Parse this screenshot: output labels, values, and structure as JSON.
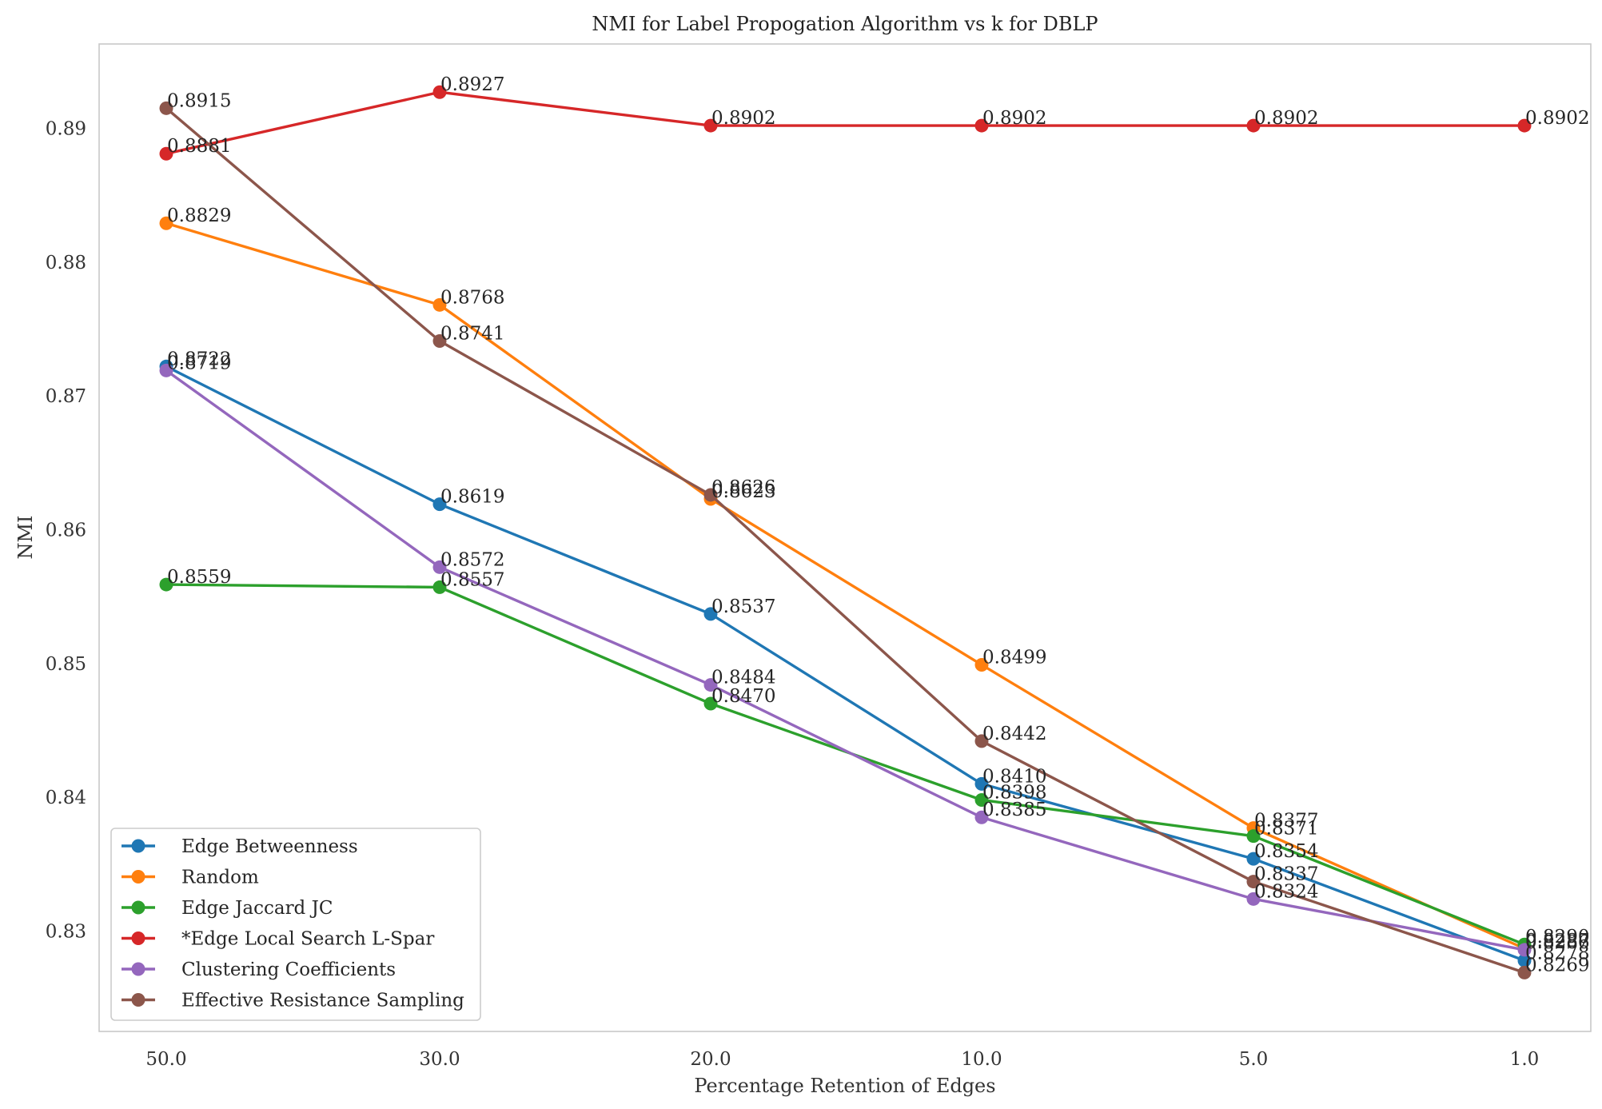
{
  "chart_data": {
    "type": "line",
    "title": "NMI for Label Propogation Algorithm vs k for DBLP",
    "xlabel": "Percentage Retention of Edges",
    "ylabel": "NMI",
    "categories": [
      "50.0",
      "30.0",
      "20.0",
      "10.0",
      "5.0",
      "1.0"
    ],
    "ylim": [
      0.8225,
      0.8963
    ],
    "yticks": [
      "0.83",
      "0.84",
      "0.85",
      "0.86",
      "0.87",
      "0.88",
      "0.89"
    ],
    "ytick_values": [
      0.83,
      0.84,
      0.85,
      0.86,
      0.87,
      0.88,
      0.89
    ],
    "grid": false,
    "legend_position": "lower-left",
    "series": [
      {
        "name": "Edge Betweenness",
        "color": "#1f77b4",
        "values": [
          0.8722,
          0.8619,
          0.8537,
          0.841,
          0.8354,
          0.8278
        ],
        "labels": [
          "0.8722",
          "0.8619",
          "0.8537",
          "0.8410",
          "0.8354",
          "0.8278"
        ]
      },
      {
        "name": "Random",
        "color": "#ff7f0e",
        "values": [
          0.8829,
          0.8768,
          0.8623,
          0.8499,
          0.8377,
          0.8287
        ],
        "labels": [
          "0.8829",
          "0.8768",
          "0.8623",
          "0.8499",
          "0.8377",
          "0.8287"
        ]
      },
      {
        "name": "Edge Jaccard JC",
        "color": "#2ca02c",
        "values": [
          0.8559,
          0.8557,
          0.847,
          0.8398,
          0.8371,
          0.829
        ],
        "labels": [
          "0.8559",
          "0.8557",
          "0.8470",
          "0.8398",
          "0.8371",
          "0.8290"
        ]
      },
      {
        "name": "*Edge Local Search L-Spar",
        "color": "#d62728",
        "values": [
          0.8881,
          0.8927,
          0.8902,
          0.8902,
          0.8902,
          0.8902
        ],
        "labels": [
          "0.8881",
          "0.8927",
          "0.8902",
          "0.8902",
          "0.8902",
          "0.8902"
        ]
      },
      {
        "name": "Clustering Coefficients",
        "color": "#9467bd",
        "values": [
          0.8719,
          0.8572,
          0.8484,
          0.8385,
          0.8324,
          0.8286
        ],
        "labels": [
          "0.8719",
          "0.8572",
          "0.8484",
          "0.8385",
          "0.8324",
          "0.8286"
        ]
      },
      {
        "name": "Effective Resistance Sampling",
        "color": "#8c564b",
        "values": [
          0.8915,
          0.8741,
          0.8626,
          0.8442,
          0.8337,
          0.8269
        ],
        "labels": [
          "0.8915",
          "0.8741",
          "0.8626",
          "0.8442",
          "0.8337",
          "0.8269"
        ]
      }
    ]
  }
}
